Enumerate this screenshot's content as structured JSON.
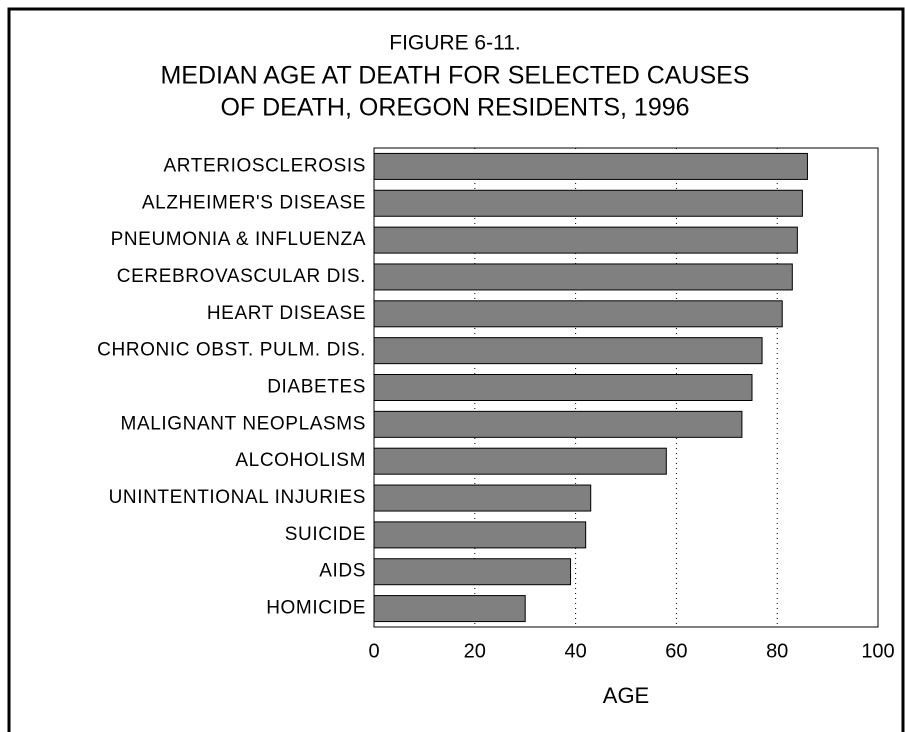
{
  "chart_data": {
    "type": "bar",
    "orientation": "horizontal",
    "title": [
      "FIGURE 6-11.",
      "MEDIAN AGE AT DEATH FOR SELECTED CAUSES",
      "OF DEATH, OREGON RESIDENTS, 1996"
    ],
    "categories": [
      "ARTERIOSCLEROSIS",
      "ALZHEIMER'S DISEASE",
      "PNEUMONIA & INFLUENZA",
      "CEREBROVASCULAR DIS.",
      "HEART DISEASE",
      "CHRONIC OBST. PULM. DIS.",
      "DIABETES",
      "MALIGNANT NEOPLASMS",
      "ALCOHOLISM",
      "UNINTENTIONAL INJURIES",
      "SUICIDE",
      "AIDS",
      "HOMICIDE"
    ],
    "values": [
      86,
      85,
      84,
      83,
      81,
      77,
      75,
      73,
      58,
      43,
      42,
      39,
      30
    ],
    "color": "#808080",
    "xlabel": "AGE",
    "xlim": [
      0,
      100
    ],
    "xticks": [
      0,
      20,
      40,
      60,
      80,
      100
    ],
    "grid": true
  }
}
